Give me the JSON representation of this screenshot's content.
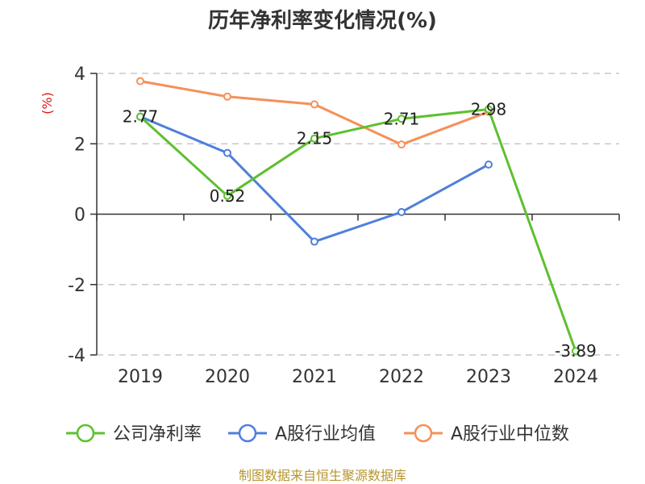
{
  "chart_data": {
    "type": "line",
    "title": "历年净利率变化情况(%)",
    "ylabel": "(%)",
    "categories": [
      "2019",
      "2020",
      "2021",
      "2022",
      "2023",
      "2024"
    ],
    "ylim": [
      -4,
      4
    ],
    "yticks": [
      -4,
      -2,
      0,
      2,
      4
    ],
    "grid": true,
    "legend_position": "bottom",
    "series": [
      {
        "name": "公司净利率",
        "color": "#5dc02f",
        "values": [
          2.77,
          0.52,
          2.15,
          2.71,
          2.98,
          -3.89
        ],
        "labels": [
          "2.77",
          "0.52",
          "2.15",
          "2.71",
          "2.98",
          "-3.89"
        ]
      },
      {
        "name": "A股行业均值",
        "color": "#4f7fdb",
        "values": [
          2.77,
          1.74,
          -0.78,
          0.06,
          1.41,
          null
        ]
      },
      {
        "name": "A股行业中位数",
        "color": "#f5905a",
        "values": [
          3.78,
          3.34,
          3.12,
          1.98,
          2.91,
          null
        ]
      }
    ],
    "source": "制图数据来自恒生聚源数据库"
  }
}
